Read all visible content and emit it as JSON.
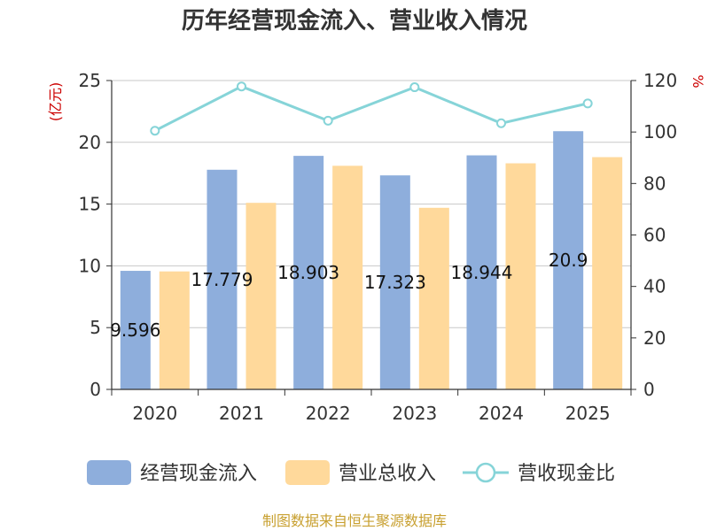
{
  "chart_data": {
    "type": "bar",
    "title": "历年经营现金流入、营业收入情况",
    "categories": [
      "2020",
      "2021",
      "2022",
      "2023",
      "2024",
      "2025"
    ],
    "series": [
      {
        "name": "经营现金流入",
        "kind": "bar",
        "axis": "left",
        "color": "#8eaedc",
        "values": [
          9.596,
          17.779,
          18.903,
          17.323,
          18.944,
          20.9
        ],
        "labels": [
          "9.596",
          "17.779",
          "18.903",
          "17.323",
          "18.944",
          "20.9"
        ]
      },
      {
        "name": "营业总收入",
        "kind": "bar",
        "axis": "left",
        "color": "#ffd99b",
        "values": [
          9.55,
          15.1,
          18.1,
          14.7,
          18.3,
          18.8
        ]
      },
      {
        "name": "营收现金比",
        "kind": "line",
        "axis": "right",
        "color": "#86d4d8",
        "values": [
          100.5,
          117.7,
          104.4,
          117.4,
          103.4,
          111.1
        ]
      }
    ],
    "y_left": {
      "unit": "(亿元)",
      "min": 0,
      "max": 25,
      "ticks": [
        0,
        5,
        10,
        15,
        20,
        25
      ]
    },
    "y_right": {
      "unit": "%",
      "min": 0,
      "max": 120,
      "ticks": [
        0,
        20,
        40,
        60,
        80,
        100,
        120
      ]
    },
    "grid": true,
    "legend_position": "bottom"
  },
  "source": "制图数据来自恒生聚源数据库"
}
